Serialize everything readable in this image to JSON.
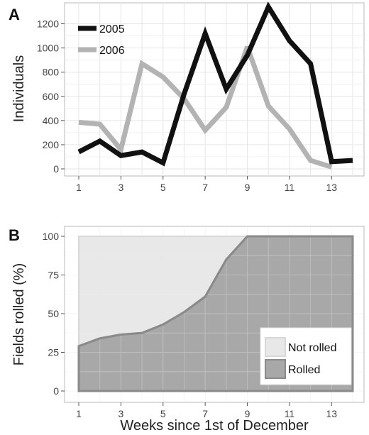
{
  "chart_data": [
    {
      "panel": "A",
      "type": "line",
      "ylabel": "Individuals",
      "x_ticks": [
        1,
        3,
        5,
        7,
        9,
        11,
        13
      ],
      "y_ticks": [
        0,
        200,
        400,
        600,
        800,
        1000,
        1200
      ],
      "xlim": [
        1,
        14
      ],
      "ylim": [
        0,
        1350
      ],
      "grid": true,
      "legend_position": "top-left",
      "series": [
        {
          "name": "2005",
          "color": "#111111",
          "x": [
            1,
            2,
            3,
            4,
            5,
            6,
            7,
            8,
            9,
            10,
            11,
            12,
            13,
            14
          ],
          "y": [
            140,
            230,
            110,
            140,
            50,
            620,
            1120,
            660,
            940,
            1340,
            1060,
            870,
            60,
            70
          ]
        },
        {
          "name": "2006",
          "color": "#b3b3b3",
          "x": [
            1,
            2,
            3,
            4,
            5,
            6,
            7,
            8,
            9,
            10,
            11,
            12,
            13
          ],
          "y": [
            385,
            370,
            160,
            870,
            760,
            580,
            320,
            510,
            1010,
            520,
            330,
            70,
            15
          ]
        }
      ]
    },
    {
      "panel": "B",
      "type": "area",
      "xlabel": "Weeks since 1st of December",
      "ylabel": "Fields rolled (%)",
      "x_ticks": [
        1,
        3,
        5,
        7,
        9,
        11,
        13
      ],
      "y_ticks": [
        0,
        25,
        50,
        75,
        100
      ],
      "xlim": [
        1,
        14
      ],
      "ylim": [
        0,
        100
      ],
      "grid": true,
      "legend_position": "bottom-right",
      "series": [
        {
          "name": "Rolled",
          "color": "#a8a8a8",
          "x": [
            1,
            2,
            3,
            4,
            5,
            6,
            7,
            8,
            9,
            10,
            11,
            12,
            13,
            14
          ],
          "y": [
            29,
            34,
            36.5,
            37.5,
            43,
            51,
            61,
            85,
            100,
            100,
            100,
            100,
            100,
            100
          ]
        },
        {
          "name": "Not rolled",
          "color": "#e8e8e8",
          "x": [
            1,
            2,
            3,
            4,
            5,
            6,
            7,
            8,
            9,
            10,
            11,
            12,
            13,
            14
          ],
          "y": [
            100,
            100,
            100,
            100,
            100,
            100,
            100,
            100,
            100,
            100,
            100,
            100,
            100,
            100
          ]
        }
      ]
    }
  ]
}
